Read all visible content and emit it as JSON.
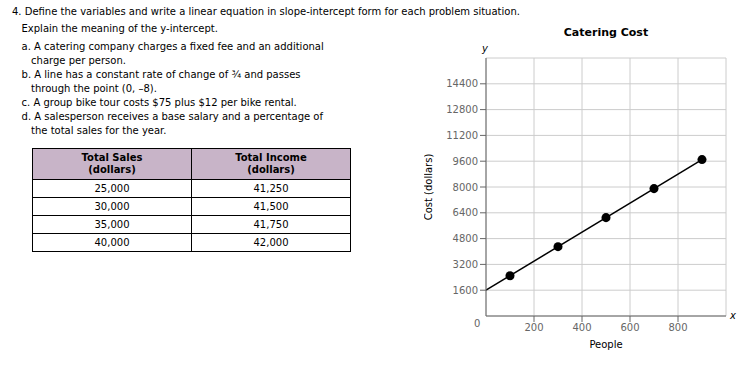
{
  "title": "4. Define the variables and write a linear equation in slope-intercept form for each problem situation.",
  "subtitle": "   Explain the meaning of the y-intercept.",
  "text": [
    "   a. A catering company charges a fixed fee and an additional",
    "      charge per person.",
    "   b. A line has a constant rate of change of ¾ and passes",
    "      through the point (0, –8).",
    "   c. A group bike tour costs $75 plus $12 per bike rental.",
    "   d. A salesperson receives a base salary and a percentage of",
    "      the total sales for the year."
  ],
  "table": {
    "headers": [
      "Total Sales\n(dollars)",
      "Total Income\n(dollars)"
    ],
    "rows": [
      [
        "25,000",
        "41,250"
      ],
      [
        "30,000",
        "41,500"
      ],
      [
        "35,000",
        "41,750"
      ],
      [
        "40,000",
        "42,000"
      ]
    ],
    "color": "#c8b4c8"
  },
  "chart_data": {
    "type": "line",
    "title": "Catering Cost",
    "x_label": "People",
    "y_label": "Cost (dollars)",
    "x_axis_end_label": "x",
    "y_axis_end_label": "y",
    "origin_label": "0",
    "xlim": [
      0,
      1000
    ],
    "ylim": [
      0,
      16000
    ],
    "xticks": [
      200,
      400,
      600,
      800
    ],
    "yticks": [
      1600,
      3200,
      4800,
      6400,
      8000,
      9600,
      11200,
      12800,
      14400
    ],
    "grid": true,
    "series": [
      {
        "type": "line",
        "color": "#000000",
        "x": [
          0,
          900
        ],
        "values": [
          1600,
          9700
        ]
      },
      {
        "type": "scatter",
        "color": "#000000",
        "x": [
          100,
          300,
          500,
          700,
          900
        ],
        "values": [
          2500,
          4300,
          6100,
          7900,
          9700
        ]
      }
    ]
  }
}
